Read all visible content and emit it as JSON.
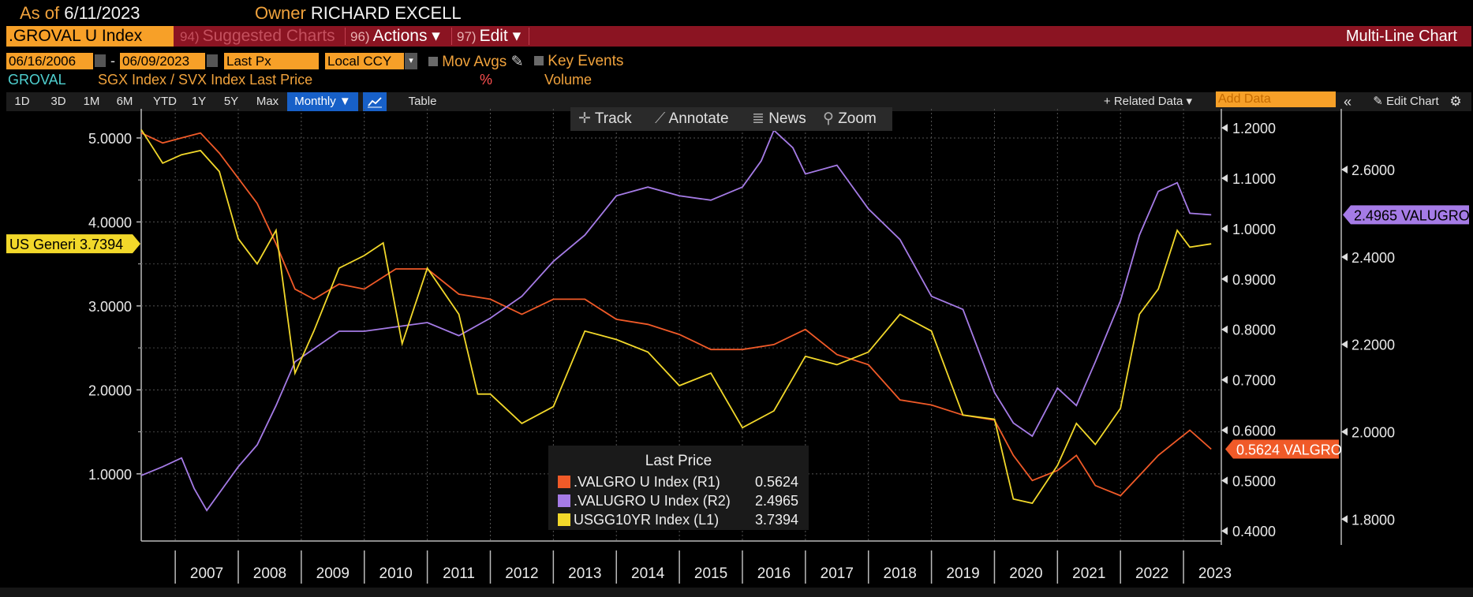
{
  "header": {
    "asof_label": "As of",
    "asof_date": "6/11/2023",
    "owner_label": "Owner",
    "owner_name": "RICHARD EXCELL"
  },
  "command_bar": {
    "ticker": ".GROVAL U Index",
    "suggested": {
      "num": "94)",
      "label": "Suggested Charts"
    },
    "actions": {
      "num": "96)",
      "label": "Actions ▾"
    },
    "edit": {
      "num": "97)",
      "label": "Edit ▾"
    },
    "title": "Multi-Line Chart"
  },
  "settings": {
    "start_date": "06/16/2006",
    "dash": "-",
    "end_date": "06/09/2023",
    "price_field": "Last Px",
    "currency": "Local CCY",
    "mov_avgs": "Mov Avgs",
    "key_events": "Key Events"
  },
  "subtitle": {
    "code": "GROVAL",
    "desc": "SGX Index / SVX Index Last Price",
    "pct": "%",
    "volume": "Volume"
  },
  "periods": [
    "1D",
    "3D",
    "1M",
    "6M",
    "YTD",
    "1Y",
    "5Y",
    "Max"
  ],
  "frequency": "Monthly ▼",
  "table_label": "Table",
  "related_data": "+ Related Data ▾",
  "add_data_placeholder": "Add Data",
  "edit_chart": "Edit Chart",
  "toolbar": {
    "track": "Track",
    "annotate": "Annotate",
    "news": "News",
    "zoom": "Zoom"
  },
  "colors": {
    "valgro": "#f05a28",
    "valugro": "#a57be6",
    "usgg": "#f2d82a",
    "accent": "#f7a028",
    "bar": "#8b1422"
  },
  "chart_data": {
    "type": "line",
    "x_ticks": [
      "2007",
      "2008",
      "2009",
      "2010",
      "2011",
      "2012",
      "2013",
      "2014",
      "2015",
      "2016",
      "2017",
      "2018",
      "2019",
      "2020",
      "2021",
      "2022",
      "2023"
    ],
    "axes": {
      "L1": {
        "ticks": [
          "1.0000",
          "2.0000",
          "3.0000",
          "4.0000",
          "5.0000"
        ],
        "range": [
          0.2,
          5.3
        ]
      },
      "R1": {
        "ticks": [
          "0.4000",
          "0.5000",
          "0.6000",
          "0.7000",
          "0.8000",
          "0.9000",
          "1.0000",
          "1.1000",
          "1.2000"
        ],
        "range": [
          0.38,
          1.23
        ]
      },
      "R2": {
        "ticks": [
          "1.8000",
          "2.0000",
          "2.2000",
          "2.4000",
          "2.6000"
        ],
        "range": [
          1.75,
          2.73
        ]
      }
    },
    "grid": true,
    "legend_title": "Last Price",
    "series": [
      {
        "name": ".VALGRO U Index",
        "axis": "R1",
        "axis_label": "(R1)",
        "last": "0.5624",
        "tag": "0.5624 VALGRO",
        "points": [
          [
            2006.46,
            1.19
          ],
          [
            2006.8,
            1.17
          ],
          [
            2007.1,
            1.18
          ],
          [
            2007.4,
            1.19
          ],
          [
            2007.7,
            1.15
          ],
          [
            2008.0,
            1.1
          ],
          [
            2008.3,
            1.05
          ],
          [
            2008.6,
            0.97
          ],
          [
            2008.9,
            0.88
          ],
          [
            2009.2,
            0.86
          ],
          [
            2009.6,
            0.89
          ],
          [
            2010.0,
            0.88
          ],
          [
            2010.5,
            0.92
          ],
          [
            2011.0,
            0.92
          ],
          [
            2011.5,
            0.87
          ],
          [
            2012.0,
            0.86
          ],
          [
            2012.5,
            0.83
          ],
          [
            2013.0,
            0.86
          ],
          [
            2013.5,
            0.86
          ],
          [
            2014.0,
            0.82
          ],
          [
            2014.5,
            0.81
          ],
          [
            2015.0,
            0.79
          ],
          [
            2015.5,
            0.76
          ],
          [
            2016.0,
            0.76
          ],
          [
            2016.5,
            0.77
          ],
          [
            2017.0,
            0.8
          ],
          [
            2017.5,
            0.75
          ],
          [
            2018.0,
            0.73
          ],
          [
            2018.5,
            0.66
          ],
          [
            2019.0,
            0.65
          ],
          [
            2019.5,
            0.63
          ],
          [
            2020.0,
            0.62
          ],
          [
            2020.3,
            0.55
          ],
          [
            2020.6,
            0.5
          ],
          [
            2021.0,
            0.52
          ],
          [
            2021.3,
            0.55
          ],
          [
            2021.6,
            0.49
          ],
          [
            2022.0,
            0.47
          ],
          [
            2022.3,
            0.51
          ],
          [
            2022.6,
            0.55
          ],
          [
            2022.9,
            0.58
          ],
          [
            2023.1,
            0.6
          ],
          [
            2023.44,
            0.5624
          ]
        ]
      },
      {
        "name": ".VALUGRO U Index",
        "axis": "R2",
        "axis_label": "(R2)",
        "last": "2.4965",
        "tag": "2.4965 VALUGRO",
        "points": [
          [
            2006.46,
            1.9
          ],
          [
            2006.8,
            1.92
          ],
          [
            2007.1,
            1.94
          ],
          [
            2007.3,
            1.87
          ],
          [
            2007.5,
            1.82
          ],
          [
            2007.8,
            1.88
          ],
          [
            2008.0,
            1.92
          ],
          [
            2008.3,
            1.97
          ],
          [
            2008.6,
            2.06
          ],
          [
            2008.9,
            2.16
          ],
          [
            2009.2,
            2.19
          ],
          [
            2009.6,
            2.23
          ],
          [
            2010.0,
            2.23
          ],
          [
            2010.5,
            2.24
          ],
          [
            2011.0,
            2.25
          ],
          [
            2011.5,
            2.22
          ],
          [
            2012.0,
            2.26
          ],
          [
            2012.5,
            2.31
          ],
          [
            2013.0,
            2.39
          ],
          [
            2013.5,
            2.45
          ],
          [
            2014.0,
            2.54
          ],
          [
            2014.5,
            2.56
          ],
          [
            2015.0,
            2.54
          ],
          [
            2015.5,
            2.53
          ],
          [
            2016.0,
            2.56
          ],
          [
            2016.3,
            2.62
          ],
          [
            2016.5,
            2.69
          ],
          [
            2016.8,
            2.65
          ],
          [
            2017.0,
            2.59
          ],
          [
            2017.5,
            2.61
          ],
          [
            2018.0,
            2.51
          ],
          [
            2018.5,
            2.44
          ],
          [
            2019.0,
            2.31
          ],
          [
            2019.5,
            2.28
          ],
          [
            2020.0,
            2.09
          ],
          [
            2020.3,
            2.02
          ],
          [
            2020.6,
            1.99
          ],
          [
            2021.0,
            2.1
          ],
          [
            2021.3,
            2.06
          ],
          [
            2021.6,
            2.16
          ],
          [
            2022.0,
            2.3
          ],
          [
            2022.3,
            2.45
          ],
          [
            2022.6,
            2.55
          ],
          [
            2022.9,
            2.57
          ],
          [
            2023.1,
            2.5
          ],
          [
            2023.44,
            2.4965
          ]
        ]
      },
      {
        "name": "USGG10YR Index",
        "axis": "L1",
        "axis_label": "(L1)",
        "last": "3.7394",
        "tag": "US Generi 3.7394",
        "points": [
          [
            2006.46,
            5.1
          ],
          [
            2006.8,
            4.7
          ],
          [
            2007.1,
            4.8
          ],
          [
            2007.4,
            4.85
          ],
          [
            2007.7,
            4.6
          ],
          [
            2008.0,
            3.8
          ],
          [
            2008.3,
            3.5
          ],
          [
            2008.6,
            3.9
          ],
          [
            2008.9,
            2.2
          ],
          [
            2009.2,
            2.7
          ],
          [
            2009.6,
            3.45
          ],
          [
            2010.0,
            3.6
          ],
          [
            2010.3,
            3.75
          ],
          [
            2010.6,
            2.55
          ],
          [
            2011.0,
            3.45
          ],
          [
            2011.5,
            2.9
          ],
          [
            2011.8,
            1.95
          ],
          [
            2012.0,
            1.95
          ],
          [
            2012.5,
            1.6
          ],
          [
            2013.0,
            1.8
          ],
          [
            2013.5,
            2.7
          ],
          [
            2014.0,
            2.6
          ],
          [
            2014.5,
            2.45
          ],
          [
            2015.0,
            2.05
          ],
          [
            2015.5,
            2.2
          ],
          [
            2016.0,
            1.55
          ],
          [
            2016.5,
            1.75
          ],
          [
            2017.0,
            2.4
          ],
          [
            2017.5,
            2.3
          ],
          [
            2018.0,
            2.45
          ],
          [
            2018.5,
            2.9
          ],
          [
            2019.0,
            2.7
          ],
          [
            2019.5,
            1.7
          ],
          [
            2020.0,
            1.65
          ],
          [
            2020.3,
            0.7
          ],
          [
            2020.6,
            0.65
          ],
          [
            2021.0,
            1.1
          ],
          [
            2021.3,
            1.6
          ],
          [
            2021.6,
            1.35
          ],
          [
            2022.0,
            1.78
          ],
          [
            2022.3,
            2.9
          ],
          [
            2022.6,
            3.2
          ],
          [
            2022.9,
            3.9
          ],
          [
            2023.1,
            3.7
          ],
          [
            2023.44,
            3.7394
          ]
        ]
      }
    ]
  }
}
